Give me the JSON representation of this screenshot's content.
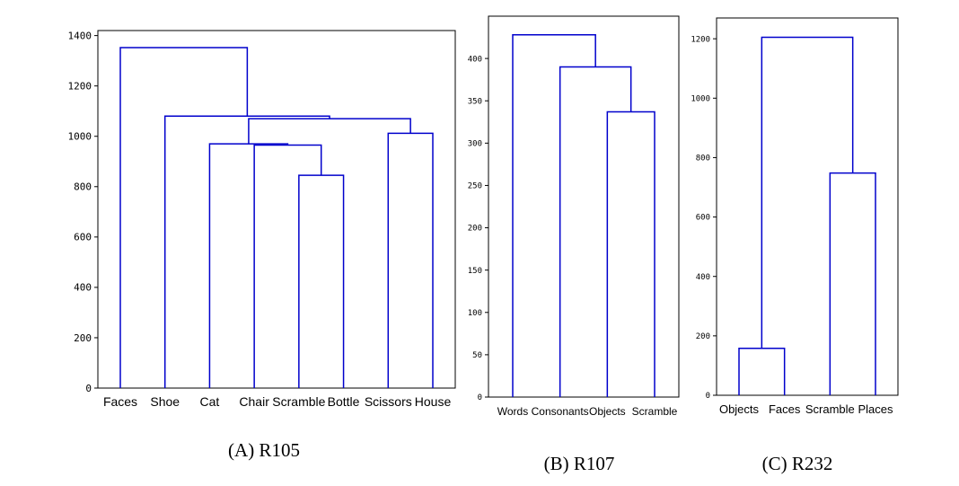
{
  "chart_data": [
    {
      "type": "dendrogram",
      "caption": "(A) R105",
      "leaves": [
        "Faces",
        "Shoe",
        "Cat",
        "Chair",
        "Scramble",
        "Bottle",
        "Scissors",
        "House"
      ],
      "yticks": [
        0,
        200,
        400,
        600,
        800,
        1000,
        1200,
        1400
      ],
      "ylim": [
        0,
        1420
      ],
      "links": [
        {
          "left": "Scramble",
          "right": "Bottle",
          "height": 845,
          "left_height": 0,
          "right_height": 0
        },
        {
          "left": "Chair",
          "right": "Scramble+Bottle",
          "height": 965,
          "left_height": 0,
          "right_height": 845
        },
        {
          "left": "Cat",
          "right": "Chair+Scramble+Bottle",
          "height": 970,
          "left_height": 0,
          "right_height": 965
        },
        {
          "left": "Scissors",
          "right": "House",
          "height": 1012,
          "left_height": 0,
          "right_height": 0
        },
        {
          "left": "Cat+Chair+Scramble+Bottle",
          "right": "Scissors+House",
          "height": 1070,
          "left_height": 970,
          "right_height": 1012
        },
        {
          "left": "Shoe",
          "right": "Cat..House",
          "height": 1080,
          "left_height": 0,
          "right_height": 1070
        },
        {
          "left": "Faces",
          "right": "Shoe..House",
          "height": 1352,
          "left_height": 0,
          "right_height": 1080
        }
      ]
    },
    {
      "type": "dendrogram",
      "caption": "(B) R107",
      "leaves": [
        "Words",
        "Consonants",
        "Objects",
        "Scramble"
      ],
      "yticks": [
        0,
        50,
        100,
        150,
        200,
        250,
        300,
        350,
        400
      ],
      "ylim": [
        0,
        450
      ],
      "links": [
        {
          "left": "Objects",
          "right": "Scramble",
          "height": 337,
          "left_height": 0,
          "right_height": 0
        },
        {
          "left": "Consonants",
          "right": "Objects+Scramble",
          "height": 390,
          "left_height": 0,
          "right_height": 337
        },
        {
          "left": "Words",
          "right": "Consonants+Objects+Scramble",
          "height": 428,
          "left_height": 0,
          "right_height": 390
        }
      ]
    },
    {
      "type": "dendrogram",
      "caption": "(C) R232",
      "leaves": [
        "Objects",
        "Faces",
        "Scramble",
        "Places"
      ],
      "yticks": [
        0,
        200,
        400,
        600,
        800,
        1000,
        1200
      ],
      "ylim": [
        0,
        1270
      ],
      "links": [
        {
          "left": "Objects",
          "right": "Faces",
          "height": 158,
          "left_height": 0,
          "right_height": 0
        },
        {
          "left": "Scramble",
          "right": "Places",
          "height": 748,
          "left_height": 0,
          "right_height": 0
        },
        {
          "left": "Objects+Faces",
          "right": "Scramble+Places",
          "height": 1205,
          "left_height": 158,
          "right_height": 748
        }
      ]
    }
  ],
  "colors": {
    "link": "#0000cc",
    "axis": "#000000",
    "background": "#ffffff"
  }
}
